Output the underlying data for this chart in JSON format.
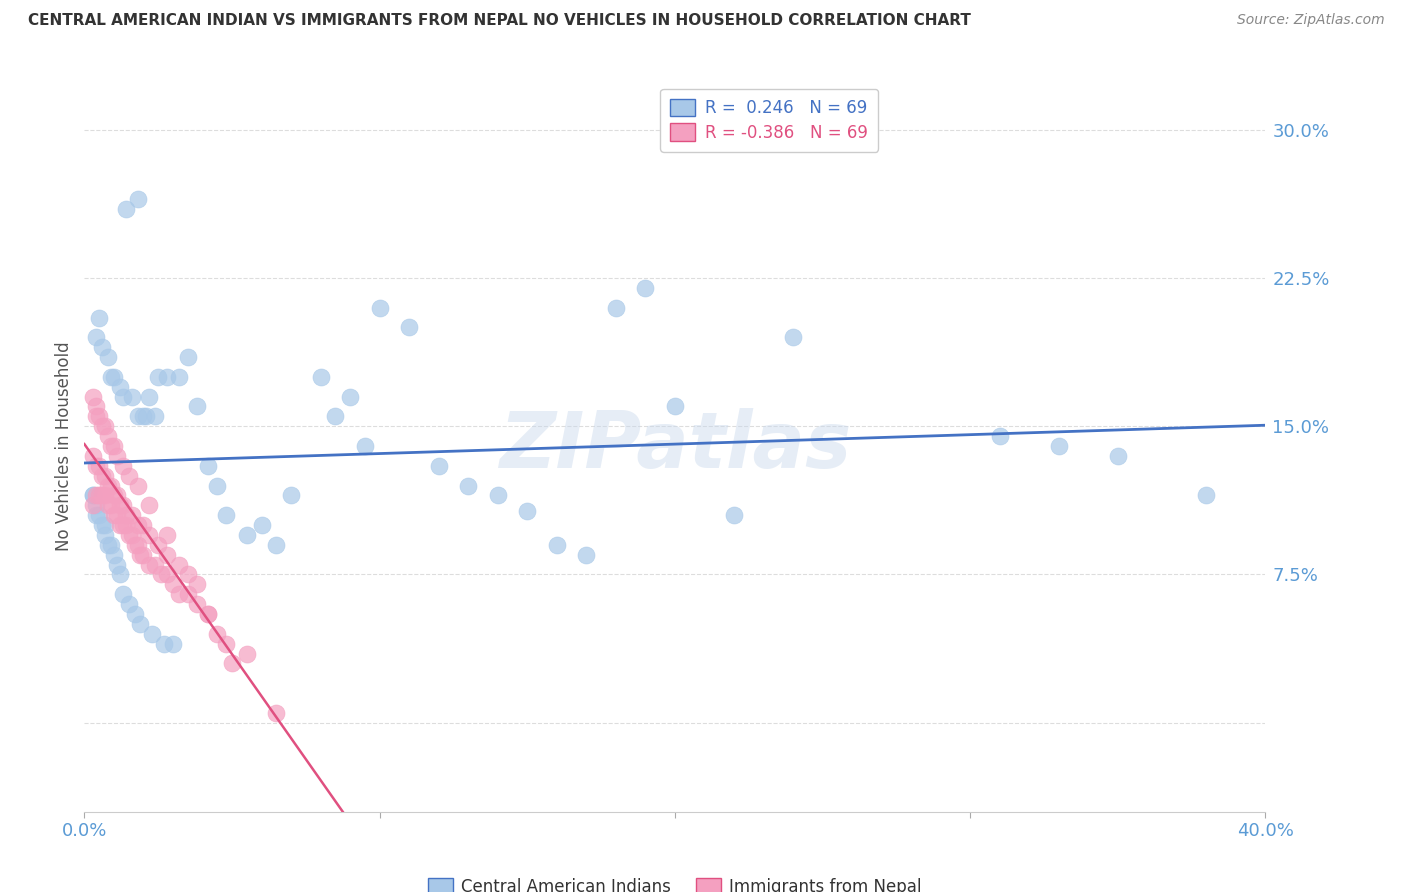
{
  "title": "CENTRAL AMERICAN INDIAN VS IMMIGRANTS FROM NEPAL NO VEHICLES IN HOUSEHOLD CORRELATION CHART",
  "source": "Source: ZipAtlas.com",
  "ylabel": "No Vehicles in Household",
  "yticks": [
    0.0,
    0.075,
    0.15,
    0.225,
    0.3
  ],
  "ytick_labels": [
    "",
    "7.5%",
    "15.0%",
    "22.5%",
    "30.0%"
  ],
  "xmin": 0.0,
  "xmax": 0.4,
  "ymin": -0.045,
  "ymax": 0.325,
  "legend_line1": "R =  0.246   N = 69",
  "legend_line2": "R = -0.386   N = 69",
  "legend_label_blue": "Central American Indians",
  "legend_label_pink": "Immigrants from Nepal",
  "watermark": "ZIPatlas",
  "blue_scatter_color": "#a8c8e8",
  "pink_scatter_color": "#f4a0c0",
  "blue_line_color": "#4472c4",
  "pink_line_color": "#e05080",
  "blue_legend_color": "#a8c8e8",
  "pink_legend_color": "#f4a0c0",
  "blue_text_color": "#4472c4",
  "pink_text_color": "#e05080",
  "tick_color": "#5b9bd5",
  "grid_color": "#dddddd",
  "background_color": "#ffffff",
  "blue_x": [
    0.014,
    0.018,
    0.005,
    0.004,
    0.006,
    0.008,
    0.009,
    0.01,
    0.012,
    0.013,
    0.016,
    0.022,
    0.025,
    0.018,
    0.021,
    0.02,
    0.024,
    0.028,
    0.032,
    0.035,
    0.038,
    0.042,
    0.045,
    0.048,
    0.055,
    0.06,
    0.065,
    0.07,
    0.08,
    0.085,
    0.09,
    0.095,
    0.1,
    0.11,
    0.12,
    0.13,
    0.14,
    0.15,
    0.16,
    0.17,
    0.18,
    0.19,
    0.2,
    0.22,
    0.24,
    0.003,
    0.003,
    0.004,
    0.004,
    0.005,
    0.006,
    0.007,
    0.007,
    0.008,
    0.009,
    0.01,
    0.011,
    0.012,
    0.013,
    0.015,
    0.017,
    0.019,
    0.023,
    0.027,
    0.03,
    0.31,
    0.33,
    0.35,
    0.38
  ],
  "blue_y": [
    0.26,
    0.265,
    0.205,
    0.195,
    0.19,
    0.185,
    0.175,
    0.175,
    0.17,
    0.165,
    0.165,
    0.165,
    0.175,
    0.155,
    0.155,
    0.155,
    0.155,
    0.175,
    0.175,
    0.185,
    0.16,
    0.13,
    0.12,
    0.105,
    0.095,
    0.1,
    0.09,
    0.115,
    0.175,
    0.155,
    0.165,
    0.14,
    0.21,
    0.2,
    0.13,
    0.12,
    0.115,
    0.107,
    0.09,
    0.085,
    0.21,
    0.22,
    0.16,
    0.105,
    0.195,
    0.115,
    0.115,
    0.11,
    0.105,
    0.105,
    0.1,
    0.1,
    0.095,
    0.09,
    0.09,
    0.085,
    0.08,
    0.075,
    0.065,
    0.06,
    0.055,
    0.05,
    0.045,
    0.04,
    0.04,
    0.145,
    0.14,
    0.135,
    0.115
  ],
  "pink_x": [
    0.003,
    0.004,
    0.005,
    0.006,
    0.007,
    0.008,
    0.009,
    0.01,
    0.011,
    0.012,
    0.013,
    0.014,
    0.015,
    0.016,
    0.017,
    0.018,
    0.019,
    0.02,
    0.022,
    0.024,
    0.026,
    0.028,
    0.03,
    0.032,
    0.035,
    0.038,
    0.042,
    0.045,
    0.048,
    0.055,
    0.003,
    0.004,
    0.005,
    0.006,
    0.007,
    0.008,
    0.009,
    0.01,
    0.011,
    0.012,
    0.013,
    0.014,
    0.016,
    0.018,
    0.02,
    0.022,
    0.025,
    0.028,
    0.032,
    0.038,
    0.003,
    0.004,
    0.004,
    0.005,
    0.006,
    0.007,
    0.008,
    0.009,
    0.01,
    0.011,
    0.013,
    0.015,
    0.018,
    0.022,
    0.028,
    0.035,
    0.042,
    0.05,
    0.065
  ],
  "pink_y": [
    0.11,
    0.115,
    0.115,
    0.115,
    0.115,
    0.11,
    0.11,
    0.105,
    0.105,
    0.1,
    0.1,
    0.1,
    0.095,
    0.095,
    0.09,
    0.09,
    0.085,
    0.085,
    0.08,
    0.08,
    0.075,
    0.075,
    0.07,
    0.065,
    0.065,
    0.06,
    0.055,
    0.045,
    0.04,
    0.035,
    0.135,
    0.13,
    0.13,
    0.125,
    0.125,
    0.12,
    0.12,
    0.115,
    0.115,
    0.11,
    0.11,
    0.105,
    0.105,
    0.1,
    0.1,
    0.095,
    0.09,
    0.085,
    0.08,
    0.07,
    0.165,
    0.16,
    0.155,
    0.155,
    0.15,
    0.15,
    0.145,
    0.14,
    0.14,
    0.135,
    0.13,
    0.125,
    0.12,
    0.11,
    0.095,
    0.075,
    0.055,
    0.03,
    0.005
  ]
}
